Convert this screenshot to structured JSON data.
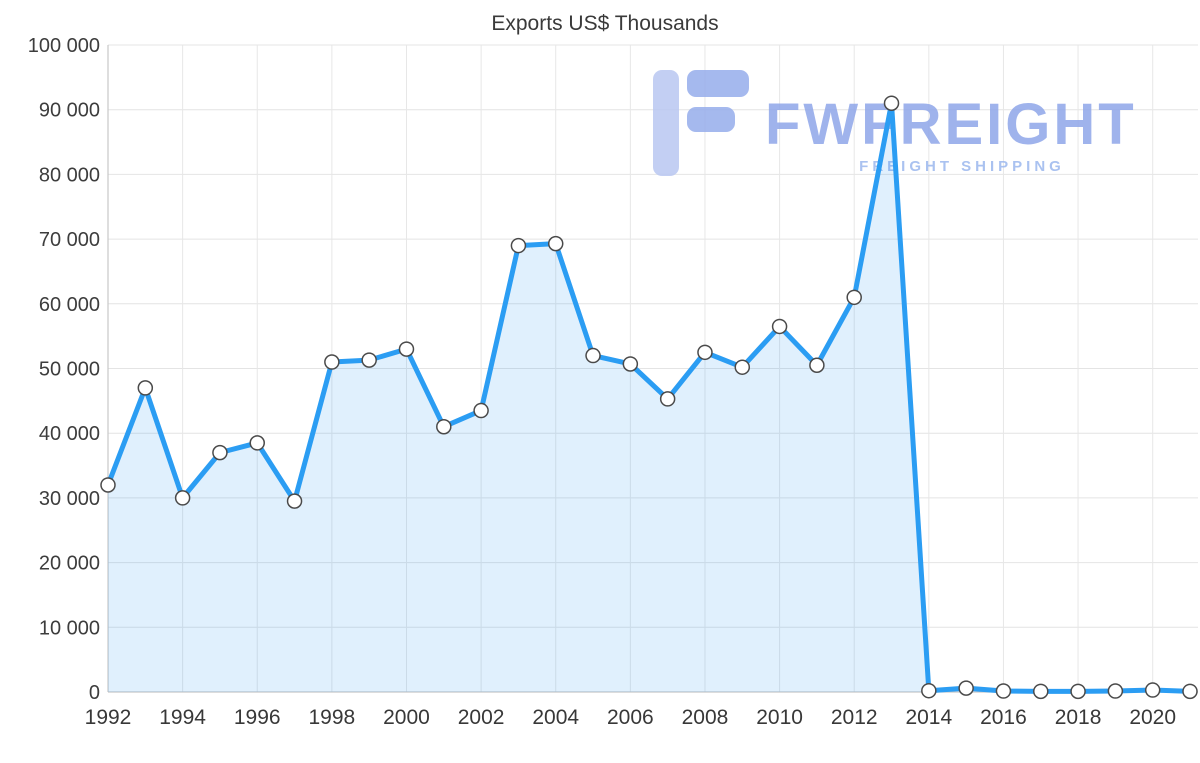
{
  "watermark": {
    "brand": "FWFREIGHT",
    "tagline": "FREIGHT SHIPPING",
    "brand_color": "#8fa6e9",
    "tagline_color": "#9cb8ee",
    "logo_light_color": "#b9c7f2",
    "logo_dark_color": "#96adec"
  },
  "chart_data": {
    "type": "line",
    "title": "Exports US$ Thousands",
    "xlabel": "",
    "ylabel": "",
    "legend_position": "none",
    "grid": true,
    "ylim": [
      0,
      100000
    ],
    "x": [
      1992,
      1993,
      1994,
      1995,
      1996,
      1997,
      1998,
      1999,
      2000,
      2001,
      2002,
      2003,
      2004,
      2005,
      2006,
      2007,
      2008,
      2009,
      2010,
      2011,
      2012,
      2013,
      2014,
      2015,
      2016,
      2017,
      2018,
      2019,
      2020,
      2021
    ],
    "series": [
      {
        "name": "Exports US$ Thousands",
        "values": [
          32000,
          47000,
          30000,
          37000,
          38500,
          29500,
          51000,
          51300,
          53000,
          41000,
          43500,
          69000,
          69300,
          52000,
          50700,
          45300,
          52500,
          50200,
          56500,
          50500,
          61000,
          91000,
          200,
          600,
          150,
          100,
          100,
          150,
          300,
          100
        ]
      }
    ],
    "x_tick_labels": [
      "1992",
      "1994",
      "1996",
      "1998",
      "2000",
      "2002",
      "2004",
      "2006",
      "2008",
      "2010",
      "2012",
      "2014",
      "2016",
      "2018",
      "2020"
    ],
    "x_tick_values": [
      1992,
      1994,
      1996,
      1998,
      2000,
      2002,
      2004,
      2006,
      2008,
      2010,
      2012,
      2014,
      2016,
      2018,
      2020
    ],
    "y_tick_values": [
      0,
      10000,
      20000,
      30000,
      40000,
      50000,
      60000,
      70000,
      80000,
      90000,
      100000
    ],
    "y_tick_labels": [
      "0",
      "10 000",
      "20 000",
      "30 000",
      "40 000",
      "50 000",
      "60 000",
      "70 000",
      "80 000",
      "90 000",
      "100 000"
    ],
    "colors": {
      "line": "#2b9df3",
      "area": "#2196f3",
      "area_opacity": 0.14,
      "marker_fill": "#ffffff",
      "marker_stroke": "#4a4a4a",
      "grid": "#e4e4e4",
      "axis": "#c8c8c8",
      "text": "#3d3d3d"
    }
  }
}
